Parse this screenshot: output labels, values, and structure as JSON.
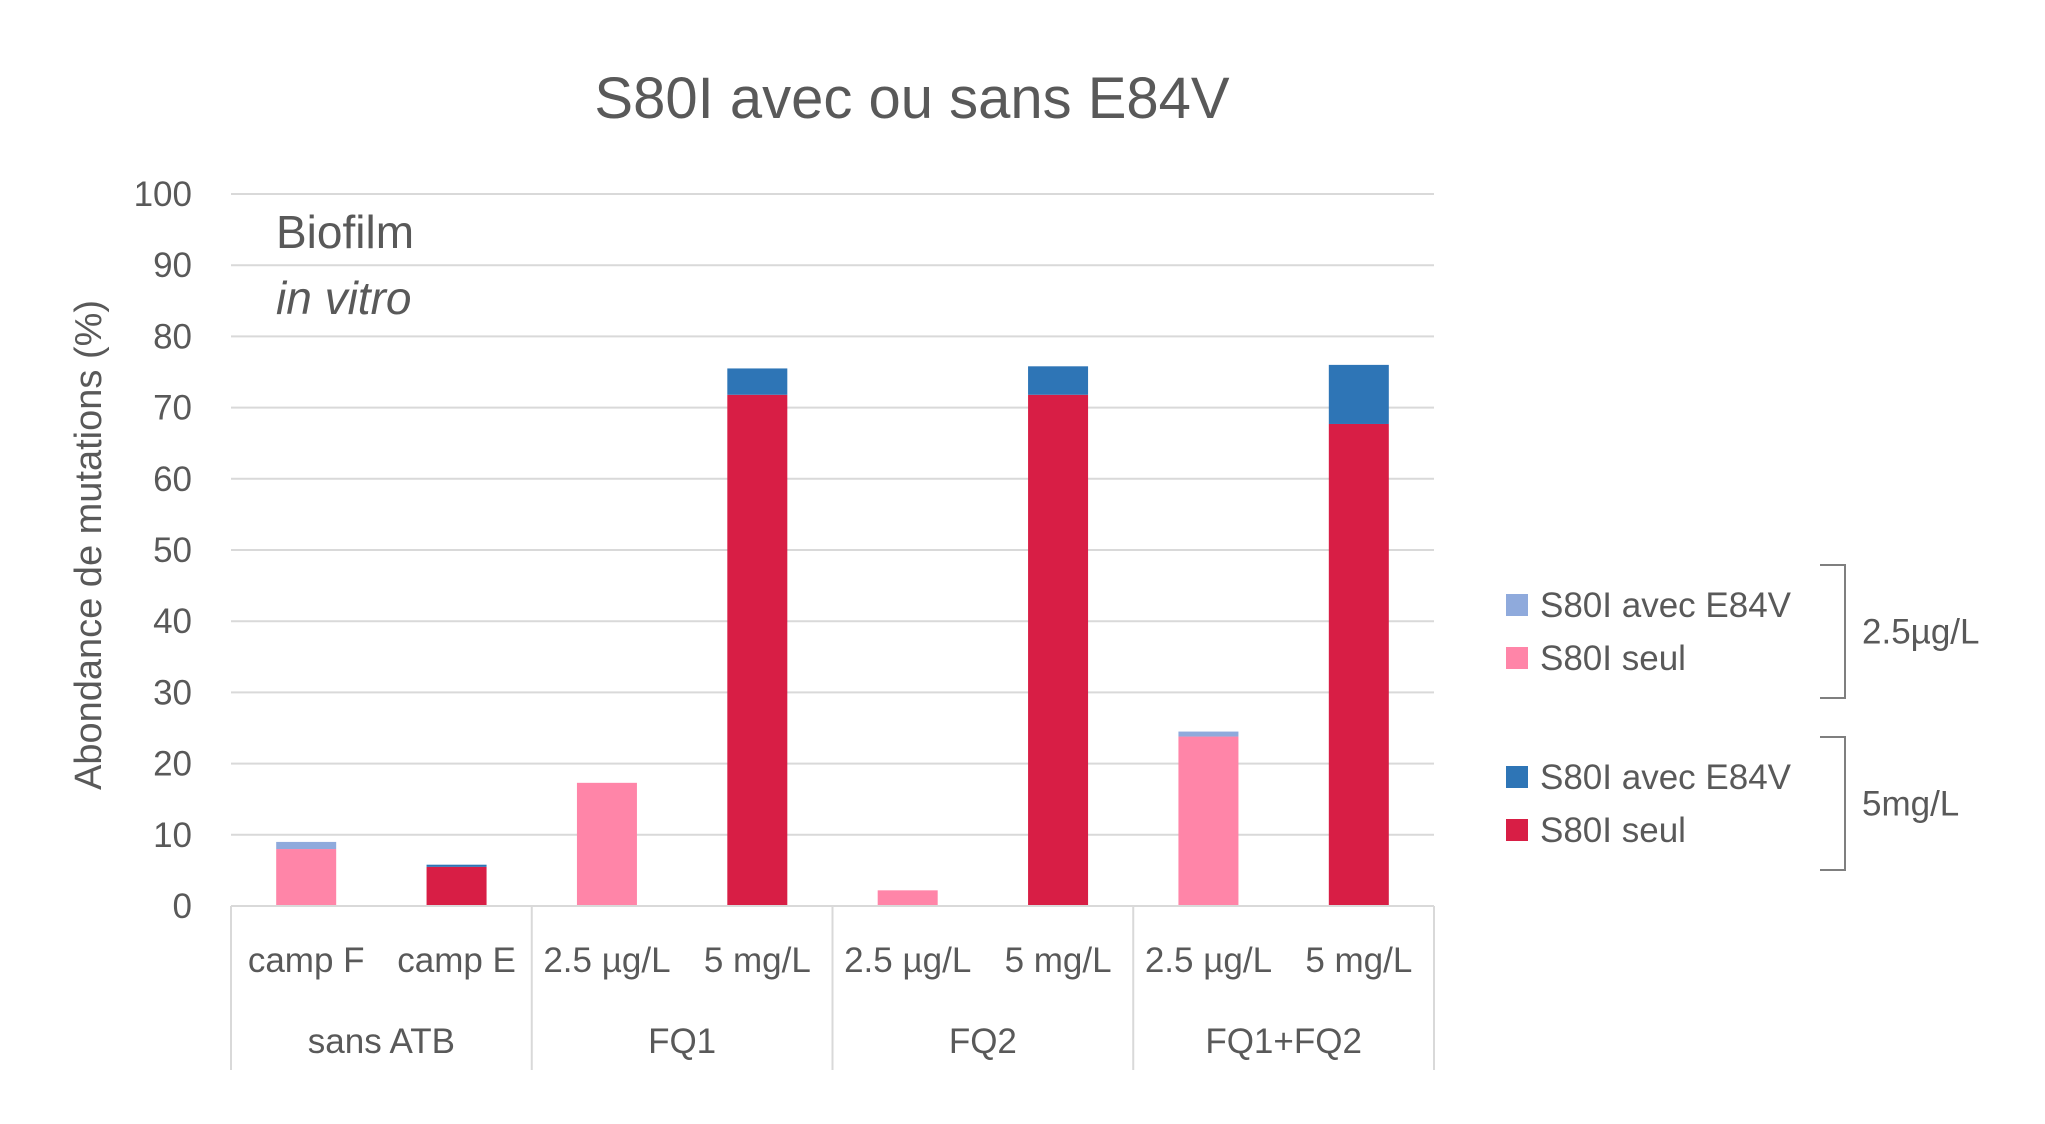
{
  "chart_data": {
    "type": "bar",
    "stacked": true,
    "title": "S80I avec ou sans E84V",
    "ylabel": "Abondance de mutations (%)",
    "ylim": [
      0,
      100
    ],
    "yticks": [
      0,
      10,
      20,
      30,
      40,
      50,
      60,
      70,
      80,
      90,
      100
    ],
    "grid": true,
    "annotation": {
      "line1": "Biofilm",
      "line2": "in vitro"
    },
    "groups": [
      {
        "label": "sans ATB",
        "categories": [
          "camp F",
          "camp E"
        ]
      },
      {
        "label": "FQ1",
        "categories": [
          "2.5 µg/L",
          "5 mg/L"
        ]
      },
      {
        "label": "FQ2",
        "categories": [
          "2.5 µg/L",
          "5 mg/L"
        ]
      },
      {
        "label": "FQ1+FQ2",
        "categories": [
          "2.5 µg/L",
          "5 mg/L"
        ]
      }
    ],
    "categories": [
      "camp F",
      "camp E",
      "2.5 µg/L",
      "5 mg/L",
      "2.5 µg/L",
      "5 mg/L",
      "2.5 µg/L",
      "5 mg/L"
    ],
    "bars": [
      {
        "seul": 8.0,
        "avec": 1.0,
        "colors": "low"
      },
      {
        "seul": 5.5,
        "avec": 0.3,
        "colors": "high"
      },
      {
        "seul": 17.3,
        "avec": 0.0,
        "colors": "low"
      },
      {
        "seul": 71.8,
        "avec": 3.7,
        "colors": "high"
      },
      {
        "seul": 2.2,
        "avec": 0.0,
        "colors": "low"
      },
      {
        "seul": 71.8,
        "avec": 4.0,
        "colors": "high"
      },
      {
        "seul": 23.8,
        "avec": 0.7,
        "colors": "low"
      },
      {
        "seul": 67.7,
        "avec": 8.3,
        "colors": "high"
      }
    ],
    "colors": {
      "low_seul": "#FF85A8",
      "low_avec": "#8FAADC",
      "high_seul": "#D81E45",
      "high_avec": "#2E75B6",
      "grid": "#D9D9D9",
      "text": "#595959"
    },
    "legend": {
      "placement": "right",
      "groups": [
        {
          "bracket_label": "2.5µg/L",
          "items": [
            {
              "label": "S80I avec E84V",
              "color": "#8FAADC"
            },
            {
              "label": "S80I seul",
              "color": "#FF85A8"
            }
          ]
        },
        {
          "bracket_label": "5mg/L",
          "items": [
            {
              "label": "S80I avec E84V",
              "color": "#2E75B6"
            },
            {
              "label": "S80I seul",
              "color": "#D81E45"
            }
          ]
        }
      ]
    }
  }
}
